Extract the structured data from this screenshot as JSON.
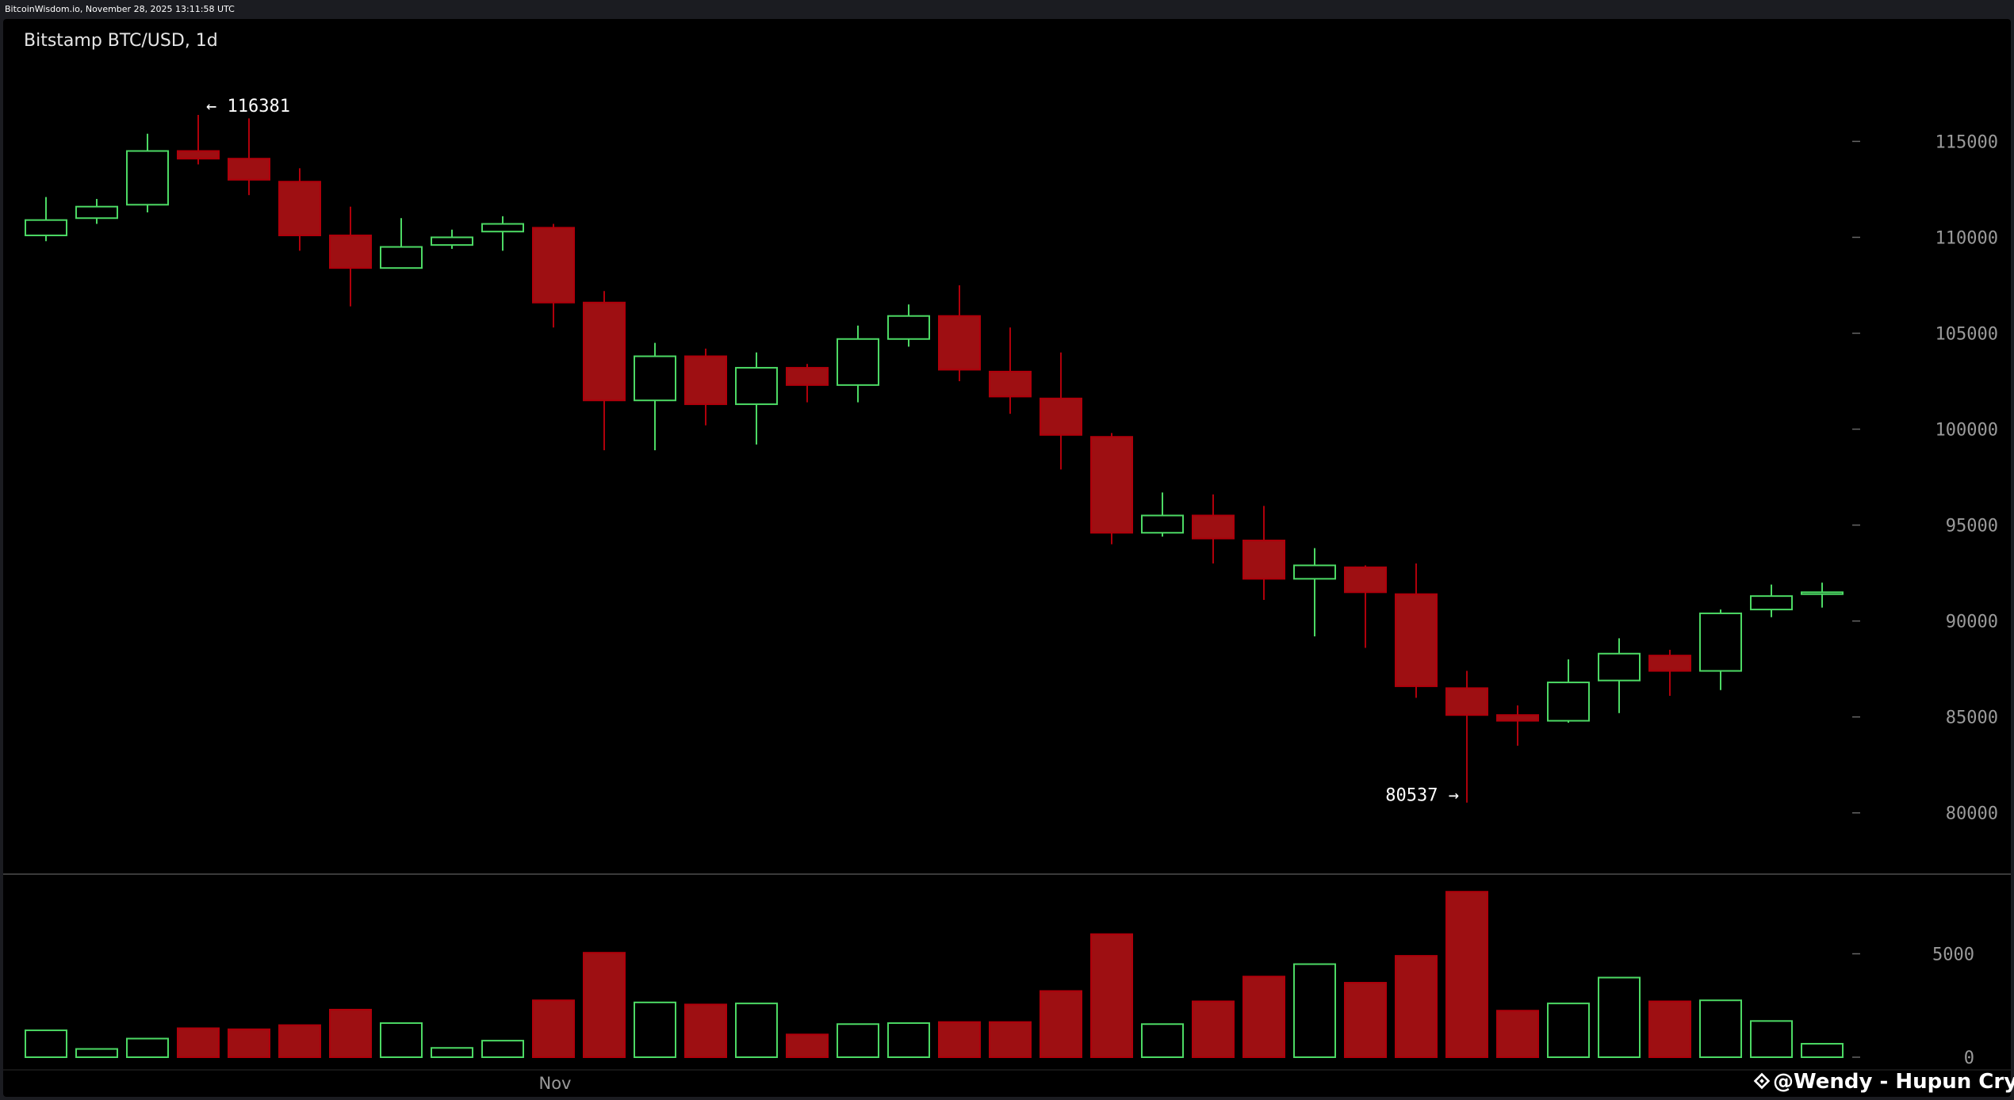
{
  "header": {
    "source": "BitcoinWisdom.io, November 28, 2025 13:11:58 UTC"
  },
  "watermark": {
    "text": "@Wendy - Hupun Crypt...",
    "icon": "binance-square-icon"
  },
  "colors": {
    "up": "#4cd964",
    "down": "#b0000b",
    "down_fill": "#9e0f12",
    "background": "#000000",
    "axis_text": "#9a9a9a"
  },
  "chart_data": {
    "type": "candlestick",
    "title": "Bitstamp BTC/USD, 1d",
    "x_tick_labels": [
      "Nov"
    ],
    "x_tick_index": 10,
    "price_ylim": [
      78500,
      117000
    ],
    "price_ticks": [
      80000,
      85000,
      90000,
      95000,
      100000,
      105000,
      110000,
      115000
    ],
    "volume_ylim": [
      0,
      8200
    ],
    "volume_ticks": [
      0,
      5000
    ],
    "annotations": [
      {
        "text": "← 116381",
        "value": 116381,
        "index": 3
      },
      {
        "text": "80537 →",
        "value": 80537,
        "index": 28
      }
    ],
    "grid": false,
    "candles": [
      {
        "o": 110100,
        "h": 112100,
        "l": 109800,
        "c": 110900,
        "v": 1300
      },
      {
        "o": 111000,
        "h": 112000,
        "l": 110700,
        "c": 111600,
        "v": 400
      },
      {
        "o": 111700,
        "h": 115400,
        "l": 111300,
        "c": 114500,
        "v": 900
      },
      {
        "o": 114500,
        "h": 116381,
        "l": 113800,
        "c": 114100,
        "v": 1400
      },
      {
        "o": 114100,
        "h": 116200,
        "l": 112200,
        "c": 113000,
        "v": 1350
      },
      {
        "o": 112900,
        "h": 113600,
        "l": 109300,
        "c": 110100,
        "v": 1550
      },
      {
        "o": 110100,
        "h": 111600,
        "l": 106400,
        "c": 108400,
        "v": 2300
      },
      {
        "o": 108400,
        "h": 111000,
        "l": 108400,
        "c": 109500,
        "v": 1650
      },
      {
        "o": 109600,
        "h": 110400,
        "l": 109400,
        "c": 110000,
        "v": 450
      },
      {
        "o": 110300,
        "h": 111100,
        "l": 109300,
        "c": 110700,
        "v": 800
      },
      {
        "o": 110500,
        "h": 110700,
        "l": 105300,
        "c": 106600,
        "v": 2750
      },
      {
        "o": 106600,
        "h": 107200,
        "l": 98900,
        "c": 101500,
        "v": 5050
      },
      {
        "o": 101500,
        "h": 104500,
        "l": 98900,
        "c": 103800,
        "v": 2650
      },
      {
        "o": 103800,
        "h": 104200,
        "l": 100200,
        "c": 101300,
        "v": 2550
      },
      {
        "o": 101300,
        "h": 104000,
        "l": 99200,
        "c": 103200,
        "v": 2600
      },
      {
        "o": 103200,
        "h": 103400,
        "l": 101400,
        "c": 102300,
        "v": 1100
      },
      {
        "o": 102300,
        "h": 105400,
        "l": 101400,
        "c": 104700,
        "v": 1600
      },
      {
        "o": 104700,
        "h": 106500,
        "l": 104300,
        "c": 105900,
        "v": 1650
      },
      {
        "o": 105900,
        "h": 107500,
        "l": 102500,
        "c": 103100,
        "v": 1700
      },
      {
        "o": 103000,
        "h": 105300,
        "l": 100800,
        "c": 101700,
        "v": 1700
      },
      {
        "o": 101600,
        "h": 104000,
        "l": 97900,
        "c": 99700,
        "v": 3200
      },
      {
        "o": 99600,
        "h": 99800,
        "l": 94000,
        "c": 94600,
        "v": 5950
      },
      {
        "o": 94600,
        "h": 96700,
        "l": 94400,
        "c": 95500,
        "v": 1600
      },
      {
        "o": 95500,
        "h": 96600,
        "l": 93000,
        "c": 94300,
        "v": 2700
      },
      {
        "o": 94200,
        "h": 96000,
        "l": 91100,
        "c": 92200,
        "v": 3900
      },
      {
        "o": 92200,
        "h": 93800,
        "l": 89200,
        "c": 92900,
        "v": 4500
      },
      {
        "o": 92800,
        "h": 92900,
        "l": 88600,
        "c": 91500,
        "v": 3600
      },
      {
        "o": 91400,
        "h": 93000,
        "l": 86000,
        "c": 86600,
        "v": 4900
      },
      {
        "o": 86500,
        "h": 87400,
        "l": 80537,
        "c": 85100,
        "v": 8000
      },
      {
        "o": 85100,
        "h": 85600,
        "l": 83500,
        "c": 84800,
        "v": 2250
      },
      {
        "o": 84800,
        "h": 88000,
        "l": 84700,
        "c": 86800,
        "v": 2600
      },
      {
        "o": 86900,
        "h": 89100,
        "l": 85200,
        "c": 88300,
        "v": 3850
      },
      {
        "o": 88200,
        "h": 88500,
        "l": 86100,
        "c": 87400,
        "v": 2700
      },
      {
        "o": 87400,
        "h": 90600,
        "l": 86400,
        "c": 90400,
        "v": 2750
      },
      {
        "o": 90600,
        "h": 91900,
        "l": 90200,
        "c": 91300,
        "v": 1750
      },
      {
        "o": 91400,
        "h": 92000,
        "l": 90700,
        "c": 91500,
        "v": 650
      }
    ]
  }
}
